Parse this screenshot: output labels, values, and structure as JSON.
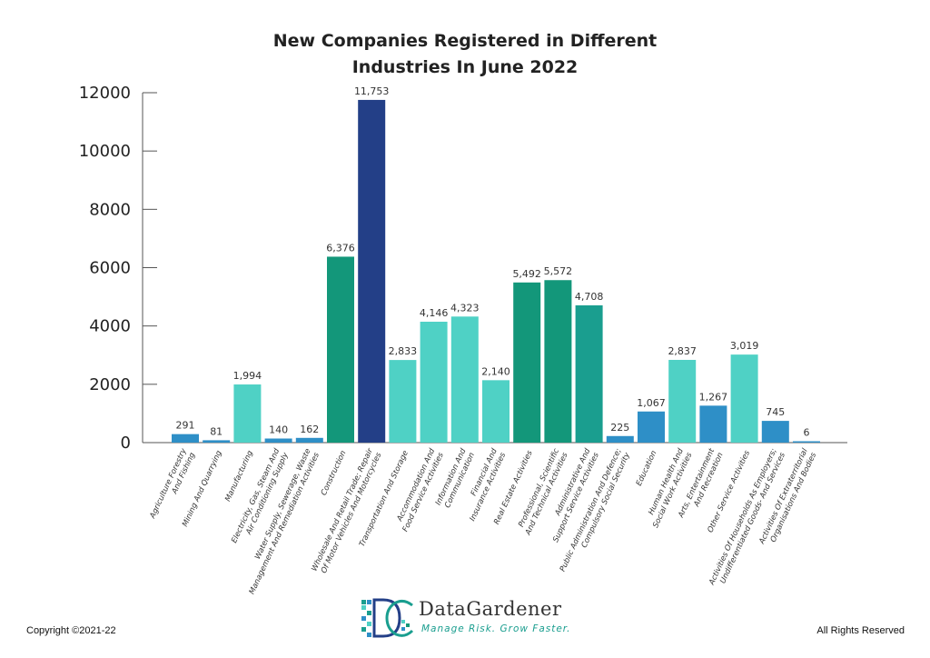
{
  "chart_data": {
    "type": "bar",
    "title_lines": [
      "New Companies Registered in Different",
      "Industries In June 2022"
    ],
    "ylim": [
      0,
      12000
    ],
    "yticks": [
      0,
      2000,
      4000,
      6000,
      8000,
      10000,
      12000
    ],
    "grid": false,
    "categories": [
      "Agriculture Forestry\nAnd Fishing",
      "Mining And Quarrying",
      "Manufacturing",
      "Electricity, Gas, Steam And\nAir Conditioning Supply",
      "Water Supply, Sewerage, Waste\nManagement And Remediation Activities",
      "Construction",
      "Wholesale And Retail Trade; Repair\nOf Motor Vehicles And Motorcycles",
      "Transportation And Storage",
      "Accommodation And\nFood Service Activities",
      "Information And\nCommunication",
      "Financial And\nInsurance Activities",
      "Real Estate Activities",
      "Professional, Scientific\nAnd Technical Activities",
      "Administrative And\nSupport Service Activities",
      "Public Administration And Defence;\nCompulsory Social Security",
      "Education",
      "Human Health And\nSocial Work Activities",
      "Arts, Entertainment\nAnd Recreation",
      "Other Service Activities",
      "Activities Of Households As Employers;\nUndifferentiated Goods- And Services",
      "Activities Of Extraterritorial\nOrganisations And Bodies"
    ],
    "values": [
      291,
      81,
      1994,
      140,
      162,
      6376,
      11753,
      2833,
      4146,
      4323,
      2140,
      5492,
      5572,
      4708,
      225,
      1067,
      2837,
      1267,
      3019,
      745,
      6
    ],
    "value_labels": [
      "291",
      "81",
      "1,994",
      "140",
      "162",
      "6,376",
      "11,753",
      "2,833",
      "4,146",
      "4,323",
      "2,140",
      "5,492",
      "5,572",
      "4,708",
      "225",
      "1,067",
      "2,837",
      "1,267",
      "3,019",
      "745",
      "6"
    ],
    "colors": [
      "#2e8fc7",
      "#2e8fc7",
      "#4fd1c5",
      "#2e8fc7",
      "#2e8fc7",
      "#13977a",
      "#233f87",
      "#4fd1c5",
      "#4fd1c5",
      "#4fd1c5",
      "#4fd1c5",
      "#13977a",
      "#13977a",
      "#1a9e8f",
      "#2e8fc7",
      "#2e8fc7",
      "#4fd1c5",
      "#2e8fc7",
      "#4fd1c5",
      "#2e8fc7",
      "#2e8fc7"
    ]
  },
  "footer": {
    "copyright": "Copyright ©2021-22",
    "rights": "All Rights Reserved"
  },
  "logo": {
    "name": "DataGardener",
    "tagline": "Manage Risk. Grow Faster.",
    "icon": "datagardener-logo-icon"
  }
}
